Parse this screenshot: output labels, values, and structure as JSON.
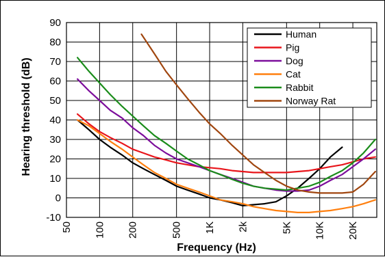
{
  "chart_data": {
    "type": "line",
    "title": "",
    "xlabel": "Frequency (Hz)",
    "ylabel": "Hearing threshold (dB)",
    "xscale": "log",
    "xlim": [
      50,
      33000
    ],
    "ylim": [
      -10,
      90
    ],
    "grid": true,
    "legend_position": "top-right",
    "y_ticks": [
      -10,
      0,
      10,
      20,
      30,
      40,
      50,
      60,
      70,
      80,
      90
    ],
    "x_ticks": [
      {
        "value": 50,
        "label": "50"
      },
      {
        "value": 100,
        "label": "100"
      },
      {
        "value": 200,
        "label": "200"
      },
      {
        "value": 500,
        "label": "500"
      },
      {
        "value": 1000,
        "label": "1K"
      },
      {
        "value": 2000,
        "label": "2k"
      },
      {
        "value": 5000,
        "label": "5K"
      },
      {
        "value": 10000,
        "label": "10K"
      },
      {
        "value": 20000,
        "label": "20K"
      }
    ],
    "series": [
      {
        "name": "Human",
        "color": "#000000",
        "points": [
          [
            63,
            40
          ],
          [
            80,
            35
          ],
          [
            100,
            30
          ],
          [
            125,
            26
          ],
          [
            160,
            22
          ],
          [
            200,
            18
          ],
          [
            250,
            15
          ],
          [
            315,
            12
          ],
          [
            400,
            9
          ],
          [
            500,
            6
          ],
          [
            630,
            4
          ],
          [
            800,
            2
          ],
          [
            1000,
            0
          ],
          [
            1250,
            -1
          ],
          [
            1600,
            -2.5
          ],
          [
            2000,
            -4
          ],
          [
            2500,
            -3.5
          ],
          [
            3150,
            -3
          ],
          [
            4000,
            -2
          ],
          [
            5000,
            1
          ],
          [
            6300,
            5
          ],
          [
            8000,
            10
          ],
          [
            10000,
            15
          ],
          [
            12500,
            21
          ],
          [
            16000,
            26
          ]
        ]
      },
      {
        "name": "Pig",
        "color": "#e8151b",
        "points": [
          [
            63,
            43
          ],
          [
            80,
            38
          ],
          [
            100,
            34
          ],
          [
            125,
            31
          ],
          [
            160,
            28
          ],
          [
            200,
            25
          ],
          [
            250,
            23
          ],
          [
            315,
            21
          ],
          [
            400,
            19.5
          ],
          [
            500,
            18
          ],
          [
            630,
            17
          ],
          [
            800,
            16
          ],
          [
            1000,
            15.5
          ],
          [
            1250,
            15
          ],
          [
            1600,
            14
          ],
          [
            2000,
            13.5
          ],
          [
            2500,
            13
          ],
          [
            3150,
            13
          ],
          [
            4000,
            13
          ],
          [
            5000,
            13
          ],
          [
            6300,
            13.5
          ],
          [
            8000,
            14
          ],
          [
            10000,
            15
          ],
          [
            12500,
            16
          ],
          [
            16000,
            17
          ],
          [
            20000,
            18.5
          ],
          [
            25000,
            20
          ],
          [
            32000,
            21
          ]
        ]
      },
      {
        "name": "Dog",
        "color": "#7c0d9b",
        "points": [
          [
            63,
            61
          ],
          [
            80,
            55
          ],
          [
            100,
            50
          ],
          [
            125,
            45
          ],
          [
            160,
            41
          ],
          [
            200,
            36
          ],
          [
            250,
            32
          ],
          [
            315,
            27
          ],
          [
            400,
            23
          ],
          [
            500,
            20
          ],
          [
            630,
            18
          ],
          [
            800,
            16
          ],
          [
            1000,
            14
          ],
          [
            1250,
            12
          ],
          [
            1600,
            10
          ],
          [
            2000,
            8
          ],
          [
            2500,
            6
          ],
          [
            3150,
            5
          ],
          [
            4000,
            4
          ],
          [
            5000,
            3.5
          ],
          [
            6300,
            3.5
          ],
          [
            8000,
            4
          ],
          [
            10000,
            6
          ],
          [
            12500,
            9
          ],
          [
            16000,
            12
          ],
          [
            20000,
            16
          ],
          [
            25000,
            20
          ],
          [
            32000,
            25
          ]
        ]
      },
      {
        "name": "Cat",
        "color": "#ff7f0e",
        "points": [
          [
            63,
            40
          ],
          [
            80,
            37
          ],
          [
            100,
            33
          ],
          [
            125,
            29
          ],
          [
            160,
            25
          ],
          [
            200,
            21
          ],
          [
            250,
            17
          ],
          [
            315,
            13
          ],
          [
            400,
            10
          ],
          [
            500,
            7
          ],
          [
            630,
            5
          ],
          [
            800,
            3
          ],
          [
            1000,
            1
          ],
          [
            1250,
            -1
          ],
          [
            1600,
            -2
          ],
          [
            2000,
            -3
          ],
          [
            2500,
            -4.5
          ],
          [
            3150,
            -5.5
          ],
          [
            4000,
            -6.5
          ],
          [
            5000,
            -7
          ],
          [
            6300,
            -7.5
          ],
          [
            8000,
            -7.5
          ],
          [
            10000,
            -7
          ],
          [
            12500,
            -6.5
          ],
          [
            16000,
            -5.5
          ],
          [
            20000,
            -4.5
          ],
          [
            25000,
            -3
          ],
          [
            32000,
            -1
          ]
        ]
      },
      {
        "name": "Rabbit",
        "color": "#1a8c1a",
        "points": [
          [
            63,
            72
          ],
          [
            80,
            65
          ],
          [
            100,
            59
          ],
          [
            125,
            53
          ],
          [
            160,
            47
          ],
          [
            200,
            42
          ],
          [
            250,
            37
          ],
          [
            315,
            32
          ],
          [
            400,
            28
          ],
          [
            500,
            24
          ],
          [
            630,
            20
          ],
          [
            800,
            17
          ],
          [
            1000,
            14
          ],
          [
            1250,
            12
          ],
          [
            1600,
            9.5
          ],
          [
            2000,
            7.5
          ],
          [
            2500,
            6
          ],
          [
            3150,
            5
          ],
          [
            4000,
            4.5
          ],
          [
            5000,
            4
          ],
          [
            6300,
            5
          ],
          [
            8000,
            6
          ],
          [
            10000,
            8
          ],
          [
            12500,
            11
          ],
          [
            16000,
            14
          ],
          [
            20000,
            18
          ],
          [
            25000,
            23
          ],
          [
            32000,
            30
          ]
        ]
      },
      {
        "name": "Norway Rat",
        "color": "#a0460f",
        "points": [
          [
            240,
            84
          ],
          [
            315,
            74
          ],
          [
            400,
            65
          ],
          [
            500,
            58
          ],
          [
            630,
            51
          ],
          [
            800,
            44
          ],
          [
            1000,
            38
          ],
          [
            1250,
            33
          ],
          [
            1600,
            27
          ],
          [
            2000,
            22
          ],
          [
            2500,
            17
          ],
          [
            3150,
            13
          ],
          [
            4000,
            9
          ],
          [
            5000,
            6
          ],
          [
            6300,
            4
          ],
          [
            8000,
            3
          ],
          [
            10000,
            2.5
          ],
          [
            12500,
            2.5
          ],
          [
            16000,
            2.5
          ],
          [
            20000,
            3
          ],
          [
            25000,
            7
          ],
          [
            32000,
            13.5
          ]
        ]
      }
    ]
  }
}
